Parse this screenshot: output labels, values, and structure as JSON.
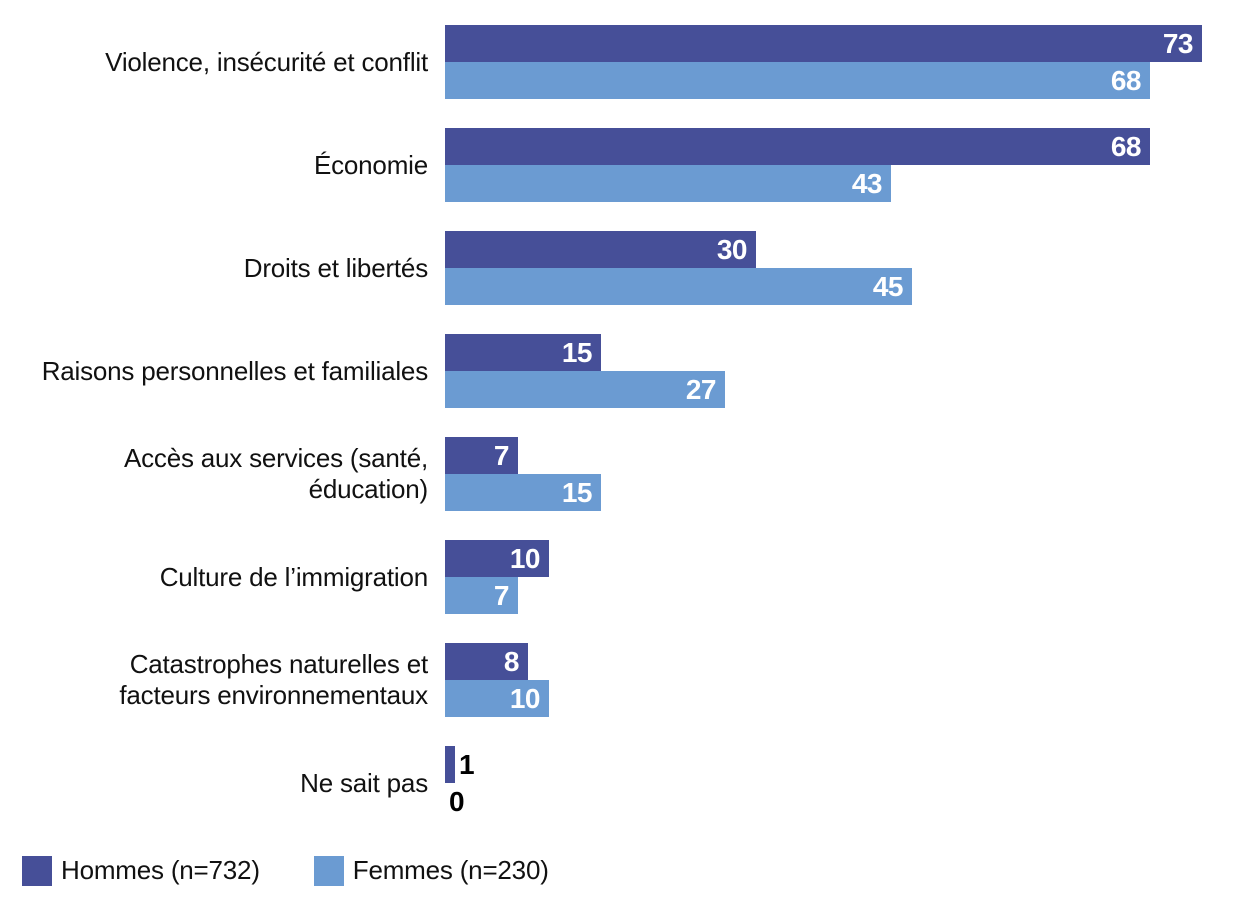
{
  "chart_data": {
    "type": "bar",
    "orientation": "horizontal",
    "title": "",
    "xlabel": "",
    "ylabel": "",
    "xlim": [
      0,
      73
    ],
    "grid": false,
    "legend_position": "bottom-left",
    "value_labels": "inside-end, outside when bar too small",
    "categories": [
      {
        "label": "Violence, insécurité et conflit",
        "lines": [
          "Violence, insécurité et conflit"
        ]
      },
      {
        "label": "Économie",
        "lines": [
          "Économie"
        ]
      },
      {
        "label": "Droits et libertés",
        "lines": [
          "Droits et libertés"
        ]
      },
      {
        "label": "Raisons personnelles et familiales",
        "lines": [
          "Raisons personnelles et familiales"
        ]
      },
      {
        "label": "Accès aux services (santé, éducation)",
        "lines": [
          "Accès aux services (santé,",
          "éducation)"
        ]
      },
      {
        "label": "Culture de l’immigration",
        "lines": [
          "Culture de l’immigration"
        ]
      },
      {
        "label": "Catastrophes naturelles et facteurs environnementaux",
        "lines": [
          "Catastrophes naturelles et",
          "facteurs environnementaux"
        ]
      },
      {
        "label": "Ne sait pas",
        "lines": [
          "Ne sait pas"
        ]
      }
    ],
    "series": [
      {
        "name": "Hommes (n=732)",
        "color": "#464F98",
        "values": [
          73,
          68,
          30,
          15,
          7,
          10,
          8,
          1
        ]
      },
      {
        "name": "Femmes (n=230)",
        "color": "#6B9BD2",
        "values": [
          68,
          43,
          45,
          27,
          15,
          7,
          10,
          0
        ]
      }
    ],
    "colors": {
      "hommes": "#464F98",
      "femmes": "#6B9BD2",
      "value_label_inside": "#ffffff",
      "value_label_outside": "#000000",
      "category_text": "#111111"
    }
  }
}
